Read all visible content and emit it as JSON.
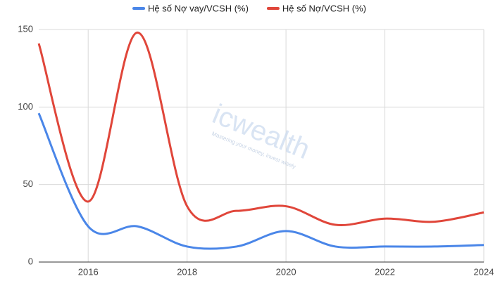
{
  "chart_data": {
    "type": "line",
    "watermark": "icwealth",
    "watermark_slogan": "Mastering your money, invest wisely",
    "x": [
      2015,
      2016,
      2017,
      2018,
      2019,
      2020,
      2021,
      2022,
      2023,
      2024
    ],
    "series": [
      {
        "name": "Hệ số Nợ vay/VCSH (%)",
        "color": "#4a86e8",
        "values": [
          96,
          23,
          23,
          10,
          10,
          20,
          10,
          10,
          10,
          11
        ]
      },
      {
        "name": "Hệ số Nợ/VCSH (%)",
        "color": "#e0463a",
        "values": [
          141,
          39,
          148,
          36,
          33,
          36,
          24,
          28,
          26,
          32
        ]
      }
    ],
    "xlim": [
      2015,
      2024
    ],
    "xticks": [
      2016,
      2018,
      2020,
      2022,
      2024
    ],
    "ylim": [
      0,
      150
    ],
    "yticks": [
      0,
      50,
      100,
      150
    ],
    "grid": true,
    "legend": "top"
  }
}
